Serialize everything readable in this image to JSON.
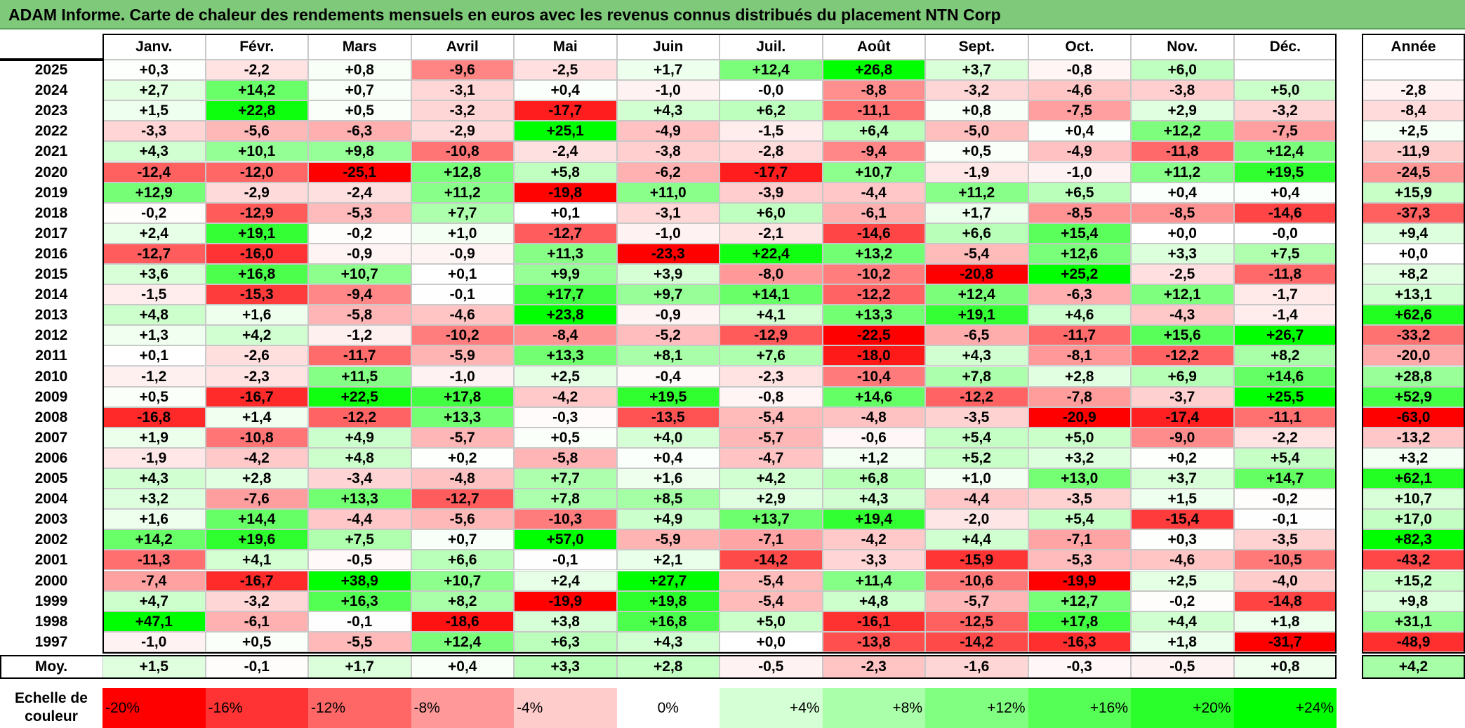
{
  "title": "ADAM Informe. Carte de chaleur des rendements mensuels en euros avec les revenus connus distribués du placement NTN Corp",
  "chart_data": {
    "type": "heatmap",
    "title": "ADAM Informe. Carte de chaleur des rendements mensuels en euros avec les revenus connus distribués du placement NTN Corp",
    "columns": [
      "Janv.",
      "Févr.",
      "Mars",
      "Avril",
      "Mai",
      "Juin",
      "Juil.",
      "Août",
      "Sept.",
      "Oct.",
      "Nov.",
      "Déc."
    ],
    "year_column_label": "Année",
    "rows": [
      {
        "year": "2025",
        "values": [
          "+0,3",
          "-2,2",
          "+0,8",
          "-9,6",
          "-2,5",
          "+1,7",
          "+12,4",
          "+26,8",
          "+3,7",
          "-0,8",
          "+6,0",
          ""
        ],
        "annual": ""
      },
      {
        "year": "2024",
        "values": [
          "+2,7",
          "+14,2",
          "+0,7",
          "-3,1",
          "+0,4",
          "-1,0",
          "-0,0",
          "-8,8",
          "-3,2",
          "-4,6",
          "-3,8",
          "+5,0"
        ],
        "annual": "-2,8"
      },
      {
        "year": "2023",
        "values": [
          "+1,5",
          "+22,8",
          "+0,5",
          "-3,2",
          "-17,7",
          "+4,3",
          "+6,2",
          "-11,1",
          "+0,8",
          "-7,5",
          "+2,9",
          "-3,2"
        ],
        "annual": "-8,4"
      },
      {
        "year": "2022",
        "values": [
          "-3,3",
          "-5,6",
          "-6,3",
          "-2,9",
          "+25,1",
          "-4,9",
          "-1,5",
          "+6,4",
          "-5,0",
          "+0,4",
          "+12,2",
          "-7,5"
        ],
        "annual": "+2,5"
      },
      {
        "year": "2021",
        "values": [
          "+4,3",
          "+10,1",
          "+9,8",
          "-10,8",
          "-2,4",
          "-3,8",
          "-2,8",
          "-9,4",
          "+0,5",
          "-4,9",
          "-11,8",
          "+12,4"
        ],
        "annual": "-11,9"
      },
      {
        "year": "2020",
        "values": [
          "-12,4",
          "-12,0",
          "-25,1",
          "+12,8",
          "+5,8",
          "-6,2",
          "-17,7",
          "+10,7",
          "-1,9",
          "-1,0",
          "+11,2",
          "+19,5"
        ],
        "annual": "-24,5"
      },
      {
        "year": "2019",
        "values": [
          "+12,9",
          "-2,9",
          "-2,4",
          "+11,2",
          "-19,8",
          "+11,0",
          "-3,9",
          "-4,4",
          "+11,2",
          "+6,5",
          "+0,4",
          "+0,4"
        ],
        "annual": "+15,9"
      },
      {
        "year": "2018",
        "values": [
          "-0,2",
          "-12,9",
          "-5,3",
          "+7,7",
          "+0,1",
          "-3,1",
          "+6,0",
          "-6,1",
          "+1,7",
          "-8,5",
          "-8,5",
          "-14,6"
        ],
        "annual": "-37,3"
      },
      {
        "year": "2017",
        "values": [
          "+2,4",
          "+19,1",
          "-0,2",
          "+1,0",
          "-12,7",
          "-1,0",
          "-2,1",
          "-14,6",
          "+6,6",
          "+15,4",
          "+0,0",
          "-0,0"
        ],
        "annual": "+9,4"
      },
      {
        "year": "2016",
        "values": [
          "-12,7",
          "-16,0",
          "-0,9",
          "-0,9",
          "+11,3",
          "-23,3",
          "+22,4",
          "+13,2",
          "-5,4",
          "+12,6",
          "+3,3",
          "+7,5"
        ],
        "annual": "+0,0"
      },
      {
        "year": "2015",
        "values": [
          "+3,6",
          "+16,8",
          "+10,7",
          "+0,1",
          "+9,9",
          "+3,9",
          "-8,0",
          "-10,2",
          "-20,8",
          "+25,2",
          "-2,5",
          "-11,8"
        ],
        "annual": "+8,2"
      },
      {
        "year": "2014",
        "values": [
          "-1,5",
          "-15,3",
          "-9,4",
          "-0,1",
          "+17,7",
          "+9,7",
          "+14,1",
          "-12,2",
          "+12,4",
          "-6,3",
          "+12,1",
          "-1,7"
        ],
        "annual": "+13,1"
      },
      {
        "year": "2013",
        "values": [
          "+4,8",
          "+1,6",
          "-5,8",
          "-4,6",
          "+23,8",
          "-0,9",
          "+4,1",
          "+13,3",
          "+19,1",
          "+4,6",
          "-4,3",
          "-1,4"
        ],
        "annual": "+62,6"
      },
      {
        "year": "2012",
        "values": [
          "+1,3",
          "+4,2",
          "-1,2",
          "-10,2",
          "-8,4",
          "-5,2",
          "-12,9",
          "-22,5",
          "-6,5",
          "-11,7",
          "+15,6",
          "+26,7"
        ],
        "annual": "-33,2"
      },
      {
        "year": "2011",
        "values": [
          "+0,1",
          "-2,6",
          "-11,7",
          "-5,9",
          "+13,3",
          "+8,1",
          "+7,6",
          "-18,0",
          "+4,3",
          "-8,1",
          "-12,2",
          "+8,2"
        ],
        "annual": "-20,0"
      },
      {
        "year": "2010",
        "values": [
          "-1,2",
          "-2,3",
          "+11,5",
          "-1,0",
          "+2,5",
          "-0,4",
          "-2,3",
          "-10,4",
          "+7,8",
          "+2,8",
          "+6,9",
          "+14,6"
        ],
        "annual": "+28,8"
      },
      {
        "year": "2009",
        "values": [
          "+0,5",
          "-16,7",
          "+22,5",
          "+17,8",
          "-4,2",
          "+19,5",
          "-0,8",
          "+14,6",
          "-12,2",
          "-7,8",
          "-3,7",
          "+25,5"
        ],
        "annual": "+52,9"
      },
      {
        "year": "2008",
        "values": [
          "-16,8",
          "+1,4",
          "-12,2",
          "+13,3",
          "-0,3",
          "-13,5",
          "-5,4",
          "-4,8",
          "-3,5",
          "-20,9",
          "-17,4",
          "-11,1"
        ],
        "annual": "-63,0"
      },
      {
        "year": "2007",
        "values": [
          "+1,9",
          "-10,8",
          "+4,9",
          "-5,7",
          "+0,5",
          "+4,0",
          "-5,7",
          "-0,6",
          "+5,4",
          "+5,0",
          "-9,0",
          "-2,2"
        ],
        "annual": "-13,2"
      },
      {
        "year": "2006",
        "values": [
          "-1,9",
          "-4,2",
          "+4,8",
          "+0,2",
          "-5,8",
          "+0,4",
          "-4,7",
          "+1,2",
          "+5,2",
          "+3,2",
          "+0,2",
          "+5,4"
        ],
        "annual": "+3,2"
      },
      {
        "year": "2005",
        "values": [
          "+4,3",
          "+2,8",
          "-3,4",
          "-4,8",
          "+7,7",
          "+1,6",
          "+4,2",
          "+6,8",
          "+1,0",
          "+13,0",
          "+3,7",
          "+14,7"
        ],
        "annual": "+62,1"
      },
      {
        "year": "2004",
        "values": [
          "+3,2",
          "-7,6",
          "+13,3",
          "-12,7",
          "+7,8",
          "+8,5",
          "+2,9",
          "+4,3",
          "-4,4",
          "-3,5",
          "+1,5",
          "-0,2"
        ],
        "annual": "+10,7"
      },
      {
        "year": "2003",
        "values": [
          "+1,6",
          "+14,4",
          "-4,4",
          "-5,6",
          "-10,3",
          "+4,9",
          "+13,7",
          "+19,4",
          "-2,0",
          "+5,4",
          "-15,4",
          "-0,1"
        ],
        "annual": "+17,0"
      },
      {
        "year": "2002",
        "values": [
          "+14,2",
          "+19,6",
          "+7,5",
          "+0,7",
          "+57,0",
          "-5,9",
          "-7,1",
          "-4,2",
          "+4,4",
          "-7,1",
          "+0,3",
          "-3,5"
        ],
        "annual": "+82,3"
      },
      {
        "year": "2001",
        "values": [
          "-11,3",
          "+4,1",
          "-0,5",
          "+6,6",
          "-0,1",
          "+2,1",
          "-14,2",
          "-3,3",
          "-15,9",
          "-5,3",
          "-4,6",
          "-10,5"
        ],
        "annual": "-43,2"
      },
      {
        "year": "2000",
        "values": [
          "-7,4",
          "-16,7",
          "+38,9",
          "+10,7",
          "+2,4",
          "+27,7",
          "-5,4",
          "+11,4",
          "-10,6",
          "-19,9",
          "+2,5",
          "-4,0"
        ],
        "annual": "+15,2"
      },
      {
        "year": "1999",
        "values": [
          "+4,7",
          "-3,2",
          "+16,3",
          "+8,2",
          "-19,9",
          "+19,8",
          "-5,4",
          "+4,8",
          "-5,7",
          "+12,7",
          "-0,2",
          "-14,8"
        ],
        "annual": "+9,8"
      },
      {
        "year": "1998",
        "values": [
          "+47,1",
          "-6,1",
          "-0,1",
          "-18,6",
          "+3,8",
          "+16,8",
          "+5,0",
          "-16,1",
          "-12,5",
          "+17,8",
          "+4,4",
          "+1,8"
        ],
        "annual": "+31,1"
      },
      {
        "year": "1997",
        "values": [
          "-1,0",
          "+0,5",
          "-5,5",
          "+12,4",
          "+6,3",
          "+4,3",
          "+0,0",
          "-13,8",
          "-14,2",
          "-16,3",
          "+1,8",
          "-31,7"
        ],
        "annual": "-48,9"
      }
    ],
    "average_row": {
      "label": "Moy.",
      "values": [
        "+1,5",
        "-0,1",
        "+1,7",
        "+0,4",
        "+3,3",
        "+2,8",
        "-0,5",
        "-2,3",
        "-1,6",
        "-0,3",
        "-0,5",
        "+0,8"
      ],
      "annual": "+4,2"
    },
    "color_scale": {
      "label_line1": "Echelle de",
      "label_line2": "couleur",
      "stops": [
        "-20%",
        "-16%",
        "-12%",
        "-8%",
        "-4%",
        "0%",
        "+4%",
        "+8%",
        "+12%",
        "+16%",
        "+20%",
        "+24%"
      ],
      "min_color": "#ff0000",
      "mid_color": "#ffffff",
      "max_color": "#00ff00",
      "range": [
        -20,
        24
      ]
    }
  }
}
